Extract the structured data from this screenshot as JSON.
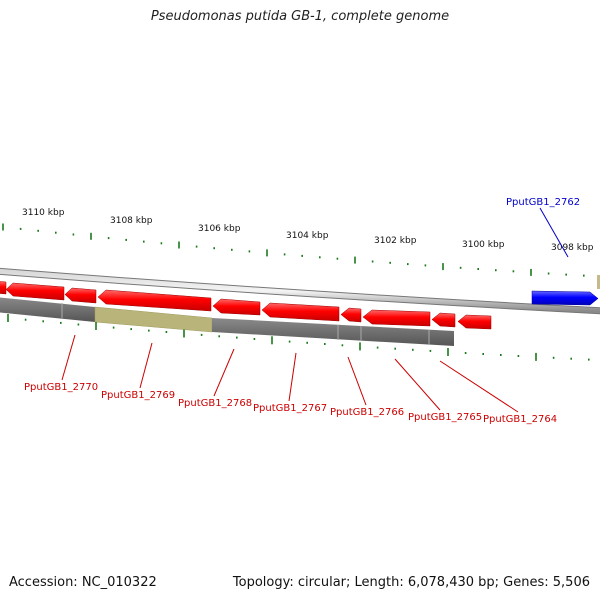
{
  "title": "Pseudomonas putida GB-1, complete genome",
  "accession_text": "Accession: NC_010322",
  "summary_text": "Topology: circular; Length: 6,078,430 bp; Genes: 5,506",
  "kbp_labels": [
    "3110 kbp",
    "3108 kbp",
    "3106 kbp",
    "3104 kbp",
    "3102 kbp",
    "3100 kbp",
    "3098 kbp"
  ],
  "highlight_gene": "PputGB1_2762",
  "gene_labels": [
    "PputGB1_2770",
    "PputGB1_2769",
    "PputGB1_2768",
    "PputGB1_2767",
    "PputGB1_2766",
    "PputGB1_2765",
    "PputGB1_2764"
  ],
  "colors": {
    "forward_gene": "#0000ff",
    "reverse_gene": "#ff0000",
    "gene_label": "#cc0000",
    "highlight_label": "#0000cc",
    "tick": "#1a7a1a",
    "backbone": "#9a9a9a",
    "gene_band": "#6a6a6a",
    "selected_band": "#b8b47a"
  }
}
